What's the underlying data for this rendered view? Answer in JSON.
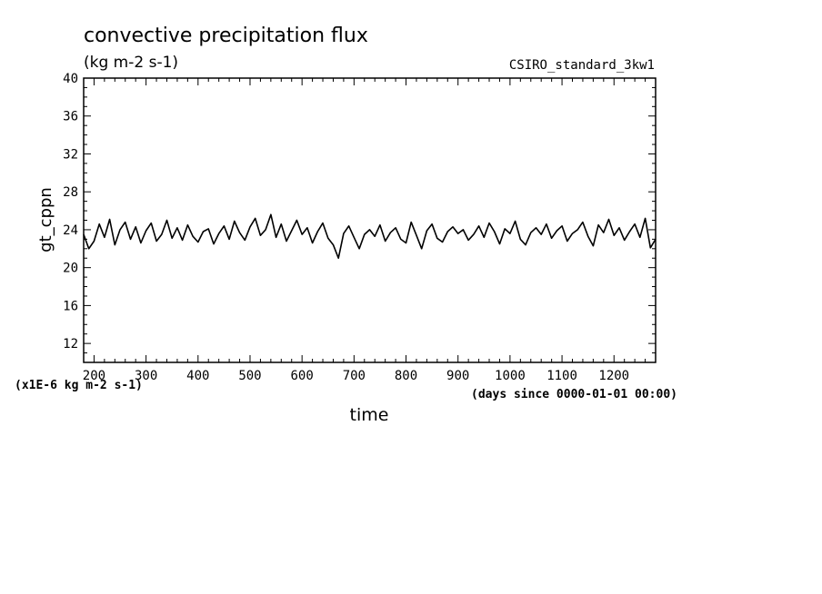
{
  "chart_data": {
    "type": "line",
    "title": "convective precipitation flux",
    "units": "(kg m-2 s-1)",
    "dataset": "CSIRO_standard_3kw1",
    "ylabel": "gt_cppn",
    "yscale_note": "(x1E-6 kg m-2 s-1)",
    "xlabel": "time",
    "xunits": "(days since 0000-01-01 00:00)",
    "xlim": [
      180,
      1280
    ],
    "ylim": [
      10,
      40
    ],
    "x_ticks": [
      200,
      300,
      400,
      500,
      600,
      700,
      800,
      900,
      1000,
      1100,
      1200
    ],
    "x_tick_labels": [
      "200",
      "300",
      "400",
      "500",
      "600",
      "700",
      "800",
      "900",
      "1000",
      "1100",
      "1200"
    ],
    "y_ticks": [
      12,
      16,
      20,
      24,
      28,
      32,
      36,
      40
    ],
    "y_tick_labels": [
      "12",
      "16",
      "20",
      "24",
      "28",
      "32",
      "36",
      "40"
    ],
    "series": [
      {
        "name": "gt_cppn",
        "color": "#000000",
        "x": [
          180,
          190,
          200,
          210,
          220,
          230,
          240,
          250,
          260,
          270,
          280,
          290,
          300,
          310,
          320,
          330,
          340,
          350,
          360,
          370,
          380,
          390,
          400,
          410,
          420,
          430,
          440,
          450,
          460,
          470,
          480,
          490,
          500,
          510,
          520,
          530,
          540,
          550,
          560,
          570,
          580,
          590,
          600,
          610,
          620,
          630,
          640,
          650,
          660,
          670,
          680,
          690,
          700,
          710,
          720,
          730,
          740,
          750,
          760,
          770,
          780,
          790,
          800,
          810,
          820,
          830,
          840,
          850,
          860,
          870,
          880,
          890,
          900,
          910,
          920,
          930,
          940,
          950,
          960,
          970,
          980,
          990,
          1000,
          1010,
          1020,
          1030,
          1040,
          1050,
          1060,
          1070,
          1080,
          1090,
          1100,
          1110,
          1120,
          1130,
          1140,
          1150,
          1160,
          1170,
          1180,
          1190,
          1200,
          1210,
          1220,
          1230,
          1240,
          1250,
          1260,
          1270,
          1280
        ],
        "values": [
          23.5,
          22.0,
          22.8,
          24.6,
          23.2,
          25.1,
          22.4,
          24.0,
          24.8,
          23.0,
          24.3,
          22.6,
          23.9,
          24.7,
          22.8,
          23.5,
          25.0,
          23.1,
          24.2,
          22.9,
          24.5,
          23.3,
          22.7,
          23.8,
          24.1,
          22.5,
          23.6,
          24.4,
          23.0,
          24.9,
          23.7,
          22.9,
          24.3,
          25.2,
          23.4,
          24.0,
          25.6,
          23.2,
          24.6,
          22.8,
          23.9,
          25.0,
          23.5,
          24.2,
          22.6,
          23.8,
          24.7,
          23.1,
          22.4,
          21.0,
          23.6,
          24.4,
          23.2,
          22.0,
          23.5,
          24.0,
          23.3,
          24.5,
          22.8,
          23.7,
          24.2,
          23.0,
          22.6,
          24.8,
          23.4,
          22.0,
          23.9,
          24.6,
          23.1,
          22.7,
          23.8,
          24.3,
          23.6,
          24.0,
          22.9,
          23.5,
          24.4,
          23.2,
          24.7,
          23.8,
          22.5,
          24.1,
          23.6,
          24.9,
          23.0,
          22.4,
          23.7,
          24.2,
          23.5,
          24.6,
          23.1,
          23.9,
          24.4,
          22.8,
          23.6,
          24.0,
          24.8,
          23.3,
          22.3,
          24.5,
          23.7,
          25.1,
          23.4,
          24.2,
          22.9,
          23.8,
          24.6,
          23.2,
          25.2,
          22.1,
          23.0
        ]
      }
    ]
  }
}
